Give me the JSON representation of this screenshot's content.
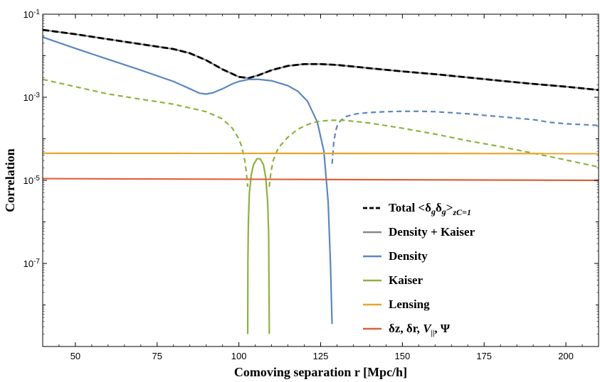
{
  "chart_data": {
    "type": "line",
    "xlabel": "Comoving separation r [Mpc/h]",
    "ylabel": "Correlation",
    "scale_y": "log",
    "xlim": [
      40,
      210
    ],
    "ylim": [
      1e-09,
      0.1
    ],
    "x_ticks": [
      50,
      75,
      100,
      125,
      150,
      175,
      200
    ],
    "y_ticks": [
      {
        "value": 0.1,
        "base": "10",
        "exp": "-1"
      },
      {
        "value": 0.001,
        "base": "10",
        "exp": "-3"
      },
      {
        "value": 1e-05,
        "base": "10",
        "exp": "-5"
      },
      {
        "value": 1e-07,
        "base": "10",
        "exp": "-7"
      }
    ],
    "legend_position": "lower-right",
    "legend": [
      {
        "label": "Total <δgδg>zC=1",
        "label_parts": {
          "pre": "Total <δ",
          "s1": "g",
          "mid": "δ",
          "s2": "g",
          "post": ">",
          "s3": "zC=1"
        },
        "color": "#000000",
        "dash": true
      },
      {
        "label": "Density + Kaiser",
        "color": "#888888",
        "dash": false
      },
      {
        "label": "Density",
        "color": "#5b86c0",
        "dash": false
      },
      {
        "label": "Kaiser",
        "color": "#8db33a",
        "dash": false
      },
      {
        "label": "Lensing",
        "color": "#e8a42a",
        "dash": false
      },
      {
        "label": "δz, δr, V||, Ψ",
        "label_parts": {
          "pre": "δz, δr, ",
          "v": "V",
          "sub": "||",
          "post": ", Ψ"
        },
        "color": "#e0603a",
        "dash": false
      }
    ],
    "series": [
      {
        "color": "#888888",
        "dash": false,
        "width": 2.2,
        "x": [
          40,
          50,
          60,
          70,
          80,
          85,
          90,
          95,
          100,
          103,
          106,
          110,
          115,
          120,
          125,
          130,
          135,
          140,
          150,
          160,
          170,
          180,
          190,
          200,
          210
        ],
        "y": [
          0.042,
          0.033,
          0.025,
          0.019,
          0.0145,
          0.0115,
          0.0078,
          0.0047,
          0.0031,
          0.0029,
          0.0034,
          0.0045,
          0.0057,
          0.0063,
          0.0063,
          0.006,
          0.0055,
          0.005,
          0.0042,
          0.0036,
          0.003,
          0.0025,
          0.0021,
          0.0018,
          0.0015
        ]
      },
      {
        "color": "#000000",
        "dash": true,
        "width": 2.8,
        "x": [
          40,
          50,
          60,
          70,
          80,
          85,
          90,
          95,
          100,
          103,
          106,
          110,
          115,
          120,
          125,
          130,
          135,
          140,
          150,
          160,
          170,
          180,
          190,
          200,
          210
        ],
        "y": [
          0.042,
          0.033,
          0.025,
          0.019,
          0.0145,
          0.0115,
          0.0078,
          0.0047,
          0.0031,
          0.0029,
          0.0034,
          0.0045,
          0.0057,
          0.0063,
          0.0063,
          0.006,
          0.0055,
          0.005,
          0.0042,
          0.0036,
          0.003,
          0.0025,
          0.0021,
          0.0018,
          0.0015
        ]
      },
      {
        "color": "#5b86c0",
        "dash": false,
        "width": 2.2,
        "x": [
          40,
          50,
          60,
          70,
          80,
          85,
          88,
          90,
          92,
          95,
          98,
          100,
          103,
          106,
          110,
          115,
          118,
          121,
          124,
          126,
          127.3,
          128.0,
          128.5
        ],
        "y": [
          0.028,
          0.015,
          0.0082,
          0.0045,
          0.0024,
          0.0016,
          0.00125,
          0.0012,
          0.00128,
          0.0016,
          0.0021,
          0.0024,
          0.0027,
          0.0027,
          0.0025,
          0.0019,
          0.0014,
          0.0008,
          0.00025,
          5e-05,
          3e-06,
          1e-07,
          3.5e-09
        ]
      },
      {
        "color": "#5b86c0",
        "dash": true,
        "width": 2.2,
        "x": [
          128.5,
          129.0,
          129.5,
          130,
          131,
          133,
          136,
          140,
          145,
          150,
          155,
          160,
          170,
          180,
          190,
          195,
          200,
          205,
          210
        ],
        "y": [
          2.5e-05,
          8e-05,
          0.00014,
          0.0002,
          0.00027,
          0.00035,
          0.0004,
          0.00043,
          0.00045,
          0.00046,
          0.00046,
          0.00045,
          0.0004,
          0.00034,
          0.00029,
          0.00025,
          0.00023,
          0.00022,
          0.00021
        ]
      },
      {
        "color": "#8db33a",
        "dash": true,
        "width": 2.2,
        "x": [
          40,
          50,
          60,
          70,
          80,
          90,
          95,
          98,
          100,
          101,
          101.8,
          102.3,
          102.7
        ],
        "y": [
          0.0027,
          0.0018,
          0.0012,
          0.0009,
          0.00068,
          0.00045,
          0.0003,
          0.00018,
          0.0001,
          6e-05,
          3e-05,
          1.5e-05,
          7e-06
        ]
      },
      {
        "color": "#8db33a",
        "dash": false,
        "width": 2.2,
        "x": [
          102.7,
          102.75,
          102.9,
          103.2,
          103.8,
          104.5,
          105.5,
          106.5,
          107.5,
          108.2,
          108.8,
          109.1,
          109.3
        ],
        "y": [
          2e-09,
          1e-07,
          1e-06,
          5e-06,
          1.4e-05,
          2.4e-05,
          3.3e-05,
          3.3e-05,
          2.4e-05,
          1.2e-05,
          3e-06,
          5e-07,
          2e-09
        ]
      },
      {
        "color": "#8db33a",
        "dash": true,
        "width": 2.2,
        "x": [
          109.3,
          109.8,
          110.5,
          112,
          115,
          118,
          121,
          124,
          128,
          132,
          140,
          150,
          160,
          170,
          180,
          190,
          200,
          210
        ],
        "y": [
          7e-06,
          1.6e-05,
          3e-05,
          6e-05,
          0.00011,
          0.00017,
          0.00022,
          0.00026,
          0.00028,
          0.00028,
          0.00024,
          0.00018,
          0.00013,
          9e-05,
          6.5e-05,
          4.5e-05,
          3.1e-05,
          2.1e-05
        ]
      },
      {
        "color": "#e8a42a",
        "dash": false,
        "width": 2.2,
        "x": [
          40,
          210
        ],
        "y": [
          4.5e-05,
          4.4e-05
        ]
      },
      {
        "color": "#e0603a",
        "dash": false,
        "width": 2.2,
        "x": [
          40,
          210
        ],
        "y": [
          1.1e-05,
          1e-05
        ]
      }
    ]
  }
}
